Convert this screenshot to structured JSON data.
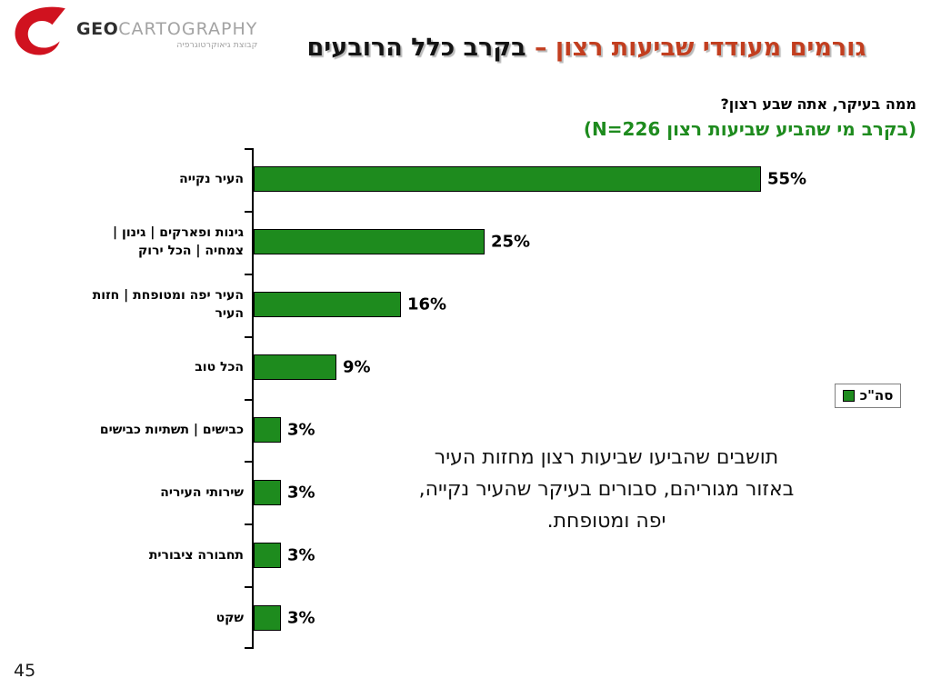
{
  "header": {
    "logo": {
      "brand_bold": "GEO",
      "brand_light": "CARTOGRAPHY",
      "tagline": "קבוצת גיאוקרטוגרפיה"
    },
    "title_red": "גורמים מעודדי שביעות רצון – ",
    "title_black": "בקרב כלל הרובעים"
  },
  "subtitle": {
    "question": "ממה בעיקר, אתה שבע רצון?",
    "base": "(בקרב מי שהביע שביעות רצון N=226)"
  },
  "chart_data": {
    "type": "bar",
    "orientation": "horizontal",
    "title": "גורמים מעודדי שביעות רצון – בקרב כלל הרובעים",
    "question": "ממה בעיקר, אתה שבע רצון?",
    "base_note": "(בקרב מי שהביע שביעות רצון N=226)",
    "categories": [
      "העיר נקייה",
      "גינות ופארקים | גינון |\nצמחיה | הכל ירוק",
      "העיר יפה ומטופחת | חזות\nהעיר",
      "הכל טוב",
      "כבישים | תשתיות כבישים",
      "שירותי העיריה",
      "תחבורה ציבורית",
      "שקט"
    ],
    "values": [
      55,
      25,
      16,
      9,
      3,
      3,
      3,
      3
    ],
    "value_labels": [
      "55%",
      "25%",
      "16%",
      "9%",
      "3%",
      "3%",
      "3%",
      "3%"
    ],
    "series_name": "סה\"כ",
    "unit": "percent",
    "xlim": [
      0,
      58
    ],
    "grid": false,
    "value_axis_visible": false,
    "bar_color": "#1e8b1e",
    "legend_position": "right-middle"
  },
  "legend": {
    "label": "סה\"כ",
    "swatch_color": "#1e8b1e"
  },
  "annotation": {
    "text": "תושבים שהביעו שביעות רצון מחזות העיר\nבאזור מגוריהם, סבורים בעיקר שהעיר נקייה,\nיפה ומטופחת."
  },
  "footer": {
    "page_number": "45"
  },
  "colors": {
    "title_red": "#c23e1f",
    "title_black": "#141414",
    "subtitle_green": "#1e8b1e",
    "bar_green": "#1e8b1e",
    "logo_red": "#d0121f"
  }
}
